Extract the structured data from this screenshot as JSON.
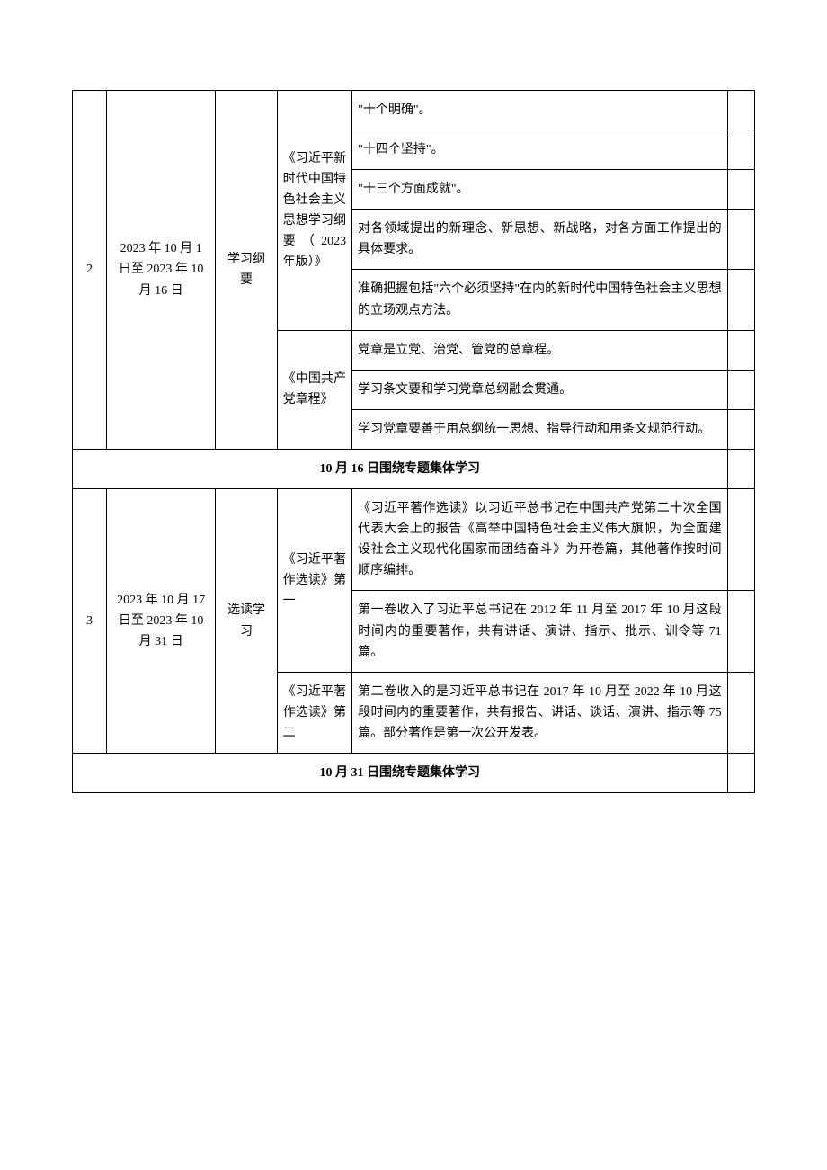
{
  "table": {
    "border_color": "#000000",
    "background_color": "#ffffff",
    "font_size_pt": 10.5,
    "columns": [
      "index",
      "date_range",
      "study_type",
      "book",
      "notes",
      "extra"
    ],
    "sections": [
      {
        "index": "2",
        "date_range": "2023 年 10 月 1 日至 2023 年 10 月 16 日",
        "study_type": "学习纲要",
        "books": [
          {
            "title": "《习近平新时代中国特色社会主义思想学习纲要（2023 年版）》",
            "notes": [
              "\"十个明确\"。",
              "\"十四个坚持\"。",
              "\"十三个方面成就\"。",
              "对各领域提出的新理念、新思想、新战略，对各方面工作提出的具体要求。",
              "准确把握包括\"六个必须坚持\"在内的新时代中国特色社会主义思想的立场观点方法。"
            ]
          },
          {
            "title": "《中国共产党章程》",
            "notes": [
              "党章是立党、治党、管党的总章程。",
              "学习条文要和学习党章总纲融会贯通。",
              "学习党章要善于用总纲统一思想、指导行动和用条文规范行动。"
            ]
          }
        ],
        "summary": "10 月 16 日围绕专题集体学习"
      },
      {
        "index": "3",
        "date_range": "2023 年 10 月 17 日至 2023 年 10 月 31 日",
        "study_type": "选读学习",
        "books": [
          {
            "title": "《习近平著作选读》第一",
            "notes": [
              "《习近平著作选读》以习近平总书记在中国共产党第二十次全国代表大会上的报告《高举中国特色社会主义伟大旗帜，为全面建设社会主义现代化国家而团结奋斗》为开卷篇，其他著作按时间顺序编排。",
              "第一卷收入了习近平总书记在 2012 年 11 月至 2017 年 10 月这段时间内的重要著作，共有讲话、演讲、指示、批示、训令等 71 篇。"
            ]
          },
          {
            "title": "《习近平著作选读》第二",
            "notes": [
              "第二卷收入的是习近平总书记在 2017 年 10 月至 2022 年 10 月这段时间内的重要著作，共有报告、讲话、谈话、演讲、指示等 75 篇。部分著作是第一次公开发表。"
            ]
          }
        ],
        "summary": "10 月 31 日围绕专题集体学习"
      }
    ]
  }
}
